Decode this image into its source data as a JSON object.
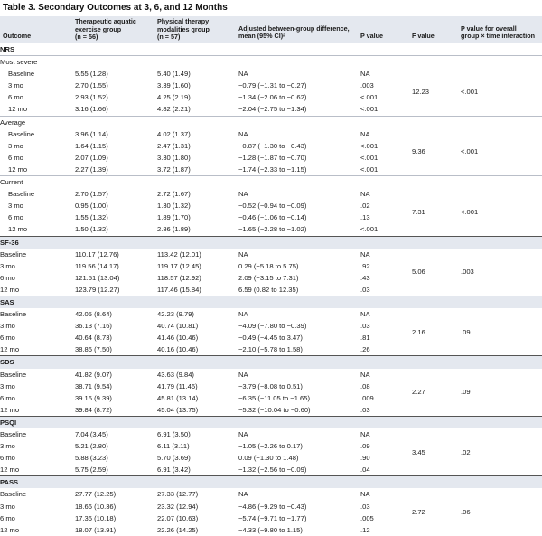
{
  "title": "Table 3. Secondary Outcomes at 3, 6, and 12 Months",
  "columns": {
    "outcome": "Outcome",
    "aquatic": [
      "Therapeutic aquatic",
      "exercise group",
      "(n = 56)"
    ],
    "physical": [
      "Physical therapy",
      "modalities group",
      "(n = 57)"
    ],
    "diff": [
      "Adjusted between-group difference,",
      "mean (95% CI)ᵃ"
    ],
    "p": "P value",
    "f": "F value",
    "pint": [
      "P value for overall",
      "group × time interaction"
    ]
  },
  "groups": [
    {
      "name": "NRS",
      "subgroups": [
        {
          "name": "Most severe",
          "f": "12.23",
          "pint": "<.001",
          "rows": [
            {
              "label": "Baseline",
              "aquatic": "5.55 (1.28)",
              "physical": "5.40 (1.49)",
              "diff": "NA",
              "p": "NA"
            },
            {
              "label": "3 mo",
              "aquatic": "2.70 (1.55)",
              "physical": "3.39 (1.60)",
              "diff": "−0.79 (−1.31 to −0.27)",
              "p": ".003"
            },
            {
              "label": "6 mo",
              "aquatic": "2.93 (1.52)",
              "physical": "4.25 (2.19)",
              "diff": "−1.34 (−2.06 to −0.62)",
              "p": "<.001"
            },
            {
              "label": "12 mo",
              "aquatic": "3.16 (1.66)",
              "physical": "4.82 (2.21)",
              "diff": "−2.04 (−2.75 to −1.34)",
              "p": "<.001"
            }
          ]
        },
        {
          "name": "Average",
          "f": "9.36",
          "pint": "<.001",
          "rows": [
            {
              "label": "Baseline",
              "aquatic": "3.96 (1.14)",
              "physical": "4.02 (1.37)",
              "diff": "NA",
              "p": "NA"
            },
            {
              "label": "3 mo",
              "aquatic": "1.64 (1.15)",
              "physical": "2.47 (1.31)",
              "diff": "−0.87 (−1.30 to −0.43)",
              "p": "<.001"
            },
            {
              "label": "6 mo",
              "aquatic": "2.07 (1.09)",
              "physical": "3.30 (1.80)",
              "diff": "−1.28 (−1.87 to −0.70)",
              "p": "<.001"
            },
            {
              "label": "12 mo",
              "aquatic": "2.27 (1.39)",
              "physical": "3.72 (1.87)",
              "diff": "−1.74 (−2.33 to −1.15)",
              "p": "<.001"
            }
          ]
        },
        {
          "name": "Current",
          "f": "7.31",
          "pint": "<.001",
          "rows": [
            {
              "label": "Baseline",
              "aquatic": "2.70 (1.57)",
              "physical": "2.72 (1.67)",
              "diff": "NA",
              "p": "NA"
            },
            {
              "label": "3 mo",
              "aquatic": "0.95 (1.00)",
              "physical": "1.30 (1.32)",
              "diff": "−0.52 (−0.94 to −0.09)",
              "p": ".02"
            },
            {
              "label": "6 mo",
              "aquatic": "1.55 (1.32)",
              "physical": "1.89 (1.70)",
              "diff": "−0.46 (−1.06 to −0.14)",
              "p": ".13"
            },
            {
              "label": "12 mo",
              "aquatic": "1.50 (1.32)",
              "physical": "2.86 (1.89)",
              "diff": "−1.65 (−2.28 to −1.02)",
              "p": "<.001"
            }
          ]
        }
      ]
    },
    {
      "name": "SF-36",
      "f": "5.06",
      "pint": ".003",
      "rows": [
        {
          "label": "Baseline",
          "aquatic": "110.17 (12.76)",
          "physical": "113.42 (12.01)",
          "diff": "NA",
          "p": "NA"
        },
        {
          "label": "3 mo",
          "aquatic": "119.56 (14.17)",
          "physical": "119.17 (12.45)",
          "diff": "0.29 (−5.18 to 5.75)",
          "p": ".92"
        },
        {
          "label": "6 mo",
          "aquatic": "121.51 (13.04)",
          "physical": "118.57 (12.92)",
          "diff": "2.09 (−3.15 to 7.31)",
          "p": ".43"
        },
        {
          "label": "12 mo",
          "aquatic": "123.79 (12.27)",
          "physical": "117.46 (15.84)",
          "diff": "6.59 (0.82 to 12.35)",
          "p": ".03"
        }
      ]
    },
    {
      "name": "SAS",
      "f": "2.16",
      "pint": ".09",
      "rows": [
        {
          "label": "Baseline",
          "aquatic": "42.05 (8.64)",
          "physical": "42.23 (9.79)",
          "diff": "NA",
          "p": "NA"
        },
        {
          "label": "3 mo",
          "aquatic": "36.13 (7.16)",
          "physical": "40.74 (10.81)",
          "diff": "−4.09 (−7.80 to −0.39)",
          "p": ".03"
        },
        {
          "label": "6 mo",
          "aquatic": "40.64 (8.73)",
          "physical": "41.46 (10.46)",
          "diff": "−0.49 (−4.45 to 3.47)",
          "p": ".81"
        },
        {
          "label": "12 mo",
          "aquatic": "38.86 (7.50)",
          "physical": "40.16 (10.46)",
          "diff": "−2.10 (−5.78 to 1.58)",
          "p": ".26"
        }
      ]
    },
    {
      "name": "SDS",
      "f": "2.27",
      "pint": ".09",
      "rows": [
        {
          "label": "Baseline",
          "aquatic": "41.82 (9.07)",
          "physical": "43.63 (9.84)",
          "diff": "NA",
          "p": "NA"
        },
        {
          "label": "3 mo",
          "aquatic": "38.71 (9.54)",
          "physical": "41.79 (11.46)",
          "diff": "−3.79 (−8.08 to 0.51)",
          "p": ".08"
        },
        {
          "label": "6 mo",
          "aquatic": "39.16 (9.39)",
          "physical": "45.81 (13.14)",
          "diff": "−6.35 (−11.05 to −1.65)",
          "p": ".009"
        },
        {
          "label": "12 mo",
          "aquatic": "39.84 (8.72)",
          "physical": "45.04 (13.75)",
          "diff": "−5.32 (−10.04 to −0.60)",
          "p": ".03"
        }
      ]
    },
    {
      "name": "PSQI",
      "f": "3.45",
      "pint": ".02",
      "rows": [
        {
          "label": "Baseline",
          "aquatic": "7.04 (3.45)",
          "physical": "6.91 (3.50)",
          "diff": "NA",
          "p": "NA"
        },
        {
          "label": "3 mo",
          "aquatic": "5.21 (2.80)",
          "physical": "6.11 (3.11)",
          "diff": "−1.05 (−2.26 to 0.17)",
          "p": ".09"
        },
        {
          "label": "6 mo",
          "aquatic": "5.88 (3.23)",
          "physical": "5.70 (3.69)",
          "diff": "0.09 (−1.30 to 1.48)",
          "p": ".90"
        },
        {
          "label": "12 mo",
          "aquatic": "5.75 (2.59)",
          "physical": "6.91 (3.42)",
          "diff": "−1.32 (−2.56 to −0.09)",
          "p": ".04"
        }
      ]
    },
    {
      "name": "PASS",
      "f": "2.72",
      "pint": ".06",
      "rows": [
        {
          "label": "Baseline",
          "aquatic": "27.77 (12.25)",
          "physical": "27.33 (12.77)",
          "diff": "NA",
          "p": "NA"
        },
        {
          "label": "3 mo",
          "aquatic": "18.66 (10.36)",
          "physical": "23.32 (12.94)",
          "diff": "−4.86 (−9.29 to −0.43)",
          "p": ".03"
        },
        {
          "label": "6 mo",
          "aquatic": "17.36 (10.18)",
          "physical": "22.07 (10.63)",
          "diff": "−5.74 (−9.71 to −1.77)",
          "p": ".005"
        },
        {
          "label": "12 mo",
          "aquatic": "18.07 (13.91)",
          "physical": "22.26 (14.25)",
          "diff": "−4.33 (−9.80 to 1.15)",
          "p": ".12"
        }
      ]
    }
  ]
}
